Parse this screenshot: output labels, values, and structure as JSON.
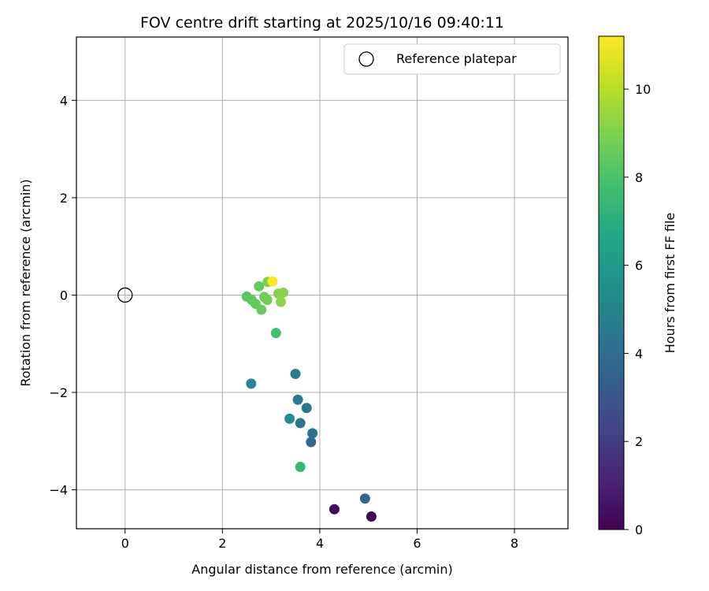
{
  "chart_data": {
    "type": "scatter",
    "title": "FOV centre drift starting at 2025/10/16 09:40:11",
    "xlabel": "Angular distance from reference (arcmin)",
    "ylabel": "Rotation from reference (arcmin)",
    "xlim": [
      -1.0,
      9.1
    ],
    "ylim": [
      -4.8,
      5.3
    ],
    "xticks": [
      0,
      2,
      4,
      6,
      8
    ],
    "xtick_labels": [
      "0",
      "2",
      "4",
      "6",
      "8"
    ],
    "yticks": [
      -4,
      -2,
      0,
      2,
      4
    ],
    "ytick_labels": [
      "−4",
      "−2",
      "0",
      "2",
      "4"
    ],
    "grid": true,
    "legend": {
      "position": "top-right",
      "entries": [
        "Reference platepar"
      ]
    },
    "reference_point": {
      "x": 0,
      "y": 0,
      "label": "Reference platepar"
    },
    "colorbar": {
      "label": "Hours from first FF file",
      "range": [
        0,
        11.2
      ],
      "ticks": [
        0,
        2,
        4,
        6,
        8,
        10
      ],
      "tick_labels": [
        "0",
        "2",
        "4",
        "6",
        "8",
        "10"
      ],
      "colormap": "viridis"
    },
    "points": [
      {
        "x": 5.06,
        "y": -4.55,
        "c": 0.1
      },
      {
        "x": 4.3,
        "y": -4.4,
        "c": 0.3
      },
      {
        "x": 4.93,
        "y": -4.18,
        "c": 3.7
      },
      {
        "x": 3.82,
        "y": -3.02,
        "c": 4.0
      },
      {
        "x": 3.85,
        "y": -2.84,
        "c": 4.2
      },
      {
        "x": 3.6,
        "y": -2.63,
        "c": 4.4
      },
      {
        "x": 3.73,
        "y": -2.32,
        "c": 4.5
      },
      {
        "x": 3.55,
        "y": -2.15,
        "c": 4.6
      },
      {
        "x": 3.5,
        "y": -1.62,
        "c": 4.8
      },
      {
        "x": 2.59,
        "y": -1.82,
        "c": 5.2
      },
      {
        "x": 3.38,
        "y": -2.54,
        "c": 5.5
      },
      {
        "x": 3.6,
        "y": -3.53,
        "c": 7.4
      },
      {
        "x": 3.1,
        "y": -0.78,
        "c": 7.8
      },
      {
        "x": 2.5,
        "y": -0.03,
        "c": 8.3
      },
      {
        "x": 2.6,
        "y": -0.1,
        "c": 8.4
      },
      {
        "x": 2.68,
        "y": -0.18,
        "c": 8.5
      },
      {
        "x": 2.75,
        "y": 0.18,
        "c": 8.5
      },
      {
        "x": 2.8,
        "y": -0.3,
        "c": 8.6
      },
      {
        "x": 2.86,
        "y": -0.04,
        "c": 8.7
      },
      {
        "x": 2.92,
        "y": -0.1,
        "c": 8.8
      },
      {
        "x": 2.93,
        "y": 0.27,
        "c": 9.0
      },
      {
        "x": 3.15,
        "y": 0.03,
        "c": 9.1
      },
      {
        "x": 3.25,
        "y": 0.05,
        "c": 9.2
      },
      {
        "x": 3.2,
        "y": -0.14,
        "c": 9.3
      },
      {
        "x": 3.03,
        "y": 0.28,
        "c": 11.2
      }
    ]
  }
}
